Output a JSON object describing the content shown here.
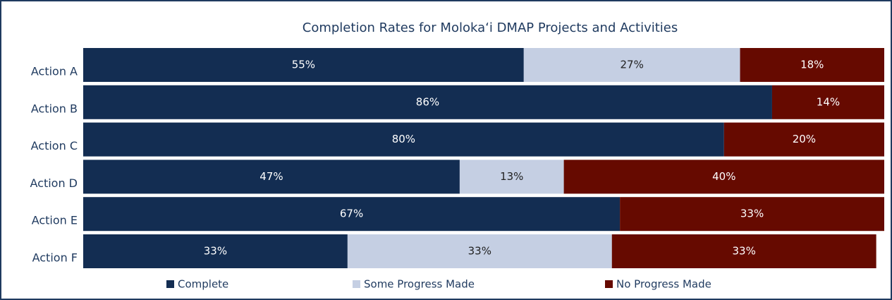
{
  "chart_data": {
    "type": "stacked_barh",
    "title": "Completion Rates for Moloka‘i DMAP Projects and Activities",
    "categories": [
      "Action A",
      "Action B",
      "Action C",
      "Action D",
      "Action E",
      "Action F"
    ],
    "xlim": [
      0,
      100
    ],
    "series": [
      {
        "name": "Complete",
        "color": "#132d52",
        "label_color": "#ffffff",
        "values": [
          55,
          86,
          80,
          47,
          67,
          33
        ],
        "value_labels": [
          "55%",
          "86%",
          "80%",
          "47%",
          "67%",
          "33%"
        ]
      },
      {
        "name": "Some Progress Made",
        "color": "#c5cfe3",
        "label_color": "#222222",
        "values": [
          27,
          0,
          0,
          13,
          0,
          33
        ],
        "value_labels": [
          "27%",
          null,
          null,
          "13%",
          null,
          "33%"
        ]
      },
      {
        "name": "No Progress Made",
        "color": "#660a00",
        "label_color": "#ffffff",
        "values": [
          18,
          14,
          20,
          40,
          33,
          33
        ],
        "value_labels": [
          "18%",
          "14%",
          "20%",
          "40%",
          "33%",
          "33%"
        ]
      }
    ],
    "legend": "bottom"
  }
}
